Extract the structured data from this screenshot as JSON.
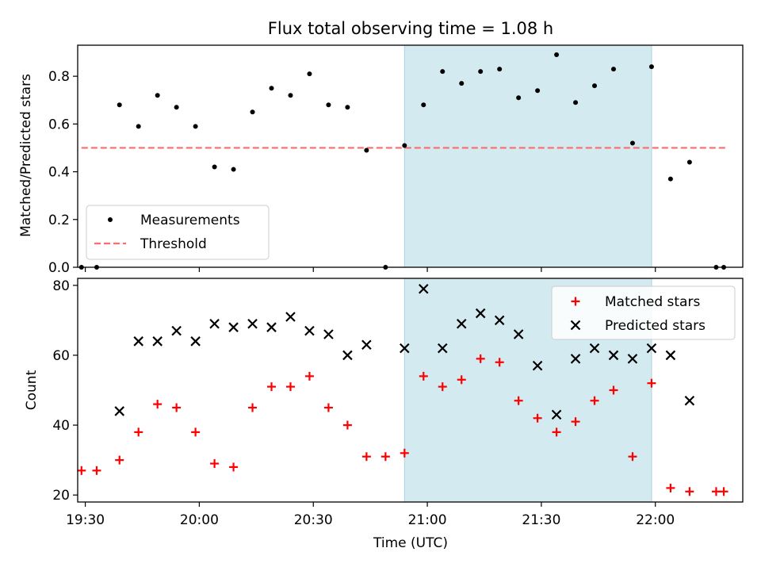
{
  "chart_data": [
    {
      "type": "scatter",
      "title": "Flux total observing time = 1.08 h",
      "xlabel": "",
      "ylabel": "Matched/Predicted stars",
      "ylim": [
        0,
        0.93
      ],
      "yticks": [
        "0.0",
        "0.2",
        "0.4",
        "0.6",
        "0.8"
      ],
      "ytick_values": [
        0,
        0.2,
        0.4,
        0.6,
        0.8
      ],
      "xlim": [
        "19:28",
        "22:23"
      ],
      "xticks": [
        "19:30",
        "20:00",
        "20:30",
        "21:00",
        "21:30",
        "22:00"
      ],
      "x_tick_labels_shown": false,
      "shaded_region": {
        "start": "20:54",
        "end": "21:59",
        "color": "#d3eaf0"
      },
      "threshold": {
        "value": 0.5,
        "start": "19:29",
        "end": "22:19",
        "color": "#ff6b6b"
      },
      "legend": {
        "placement": "lower-left",
        "entries": [
          "Measurements",
          "Threshold"
        ]
      },
      "series": [
        {
          "name": "Measurements",
          "marker": "dot",
          "color": "#000000",
          "points": [
            [
              "19:29",
              0.0
            ],
            [
              "19:33",
              0.0
            ],
            [
              "19:39",
              0.68
            ],
            [
              "19:44",
              0.59
            ],
            [
              "19:49",
              0.72
            ],
            [
              "19:54",
              0.67
            ],
            [
              "19:59",
              0.59
            ],
            [
              "20:04",
              0.42
            ],
            [
              "20:09",
              0.41
            ],
            [
              "20:14",
              0.65
            ],
            [
              "20:19",
              0.75
            ],
            [
              "20:24",
              0.72
            ],
            [
              "20:29",
              0.81
            ],
            [
              "20:34",
              0.68
            ],
            [
              "20:39",
              0.67
            ],
            [
              "20:44",
              0.49
            ],
            [
              "20:49",
              0.0
            ],
            [
              "20:54",
              0.51
            ],
            [
              "20:59",
              0.68
            ],
            [
              "21:04",
              0.82
            ],
            [
              "21:09",
              0.77
            ],
            [
              "21:14",
              0.82
            ],
            [
              "21:19",
              0.83
            ],
            [
              "21:24",
              0.71
            ],
            [
              "21:29",
              0.74
            ],
            [
              "21:34",
              0.89
            ],
            [
              "21:39",
              0.69
            ],
            [
              "21:44",
              0.76
            ],
            [
              "21:49",
              0.83
            ],
            [
              "21:54",
              0.52
            ],
            [
              "21:59",
              0.84
            ],
            [
              "22:04",
              0.37
            ],
            [
              "22:09",
              0.44
            ],
            [
              "22:16",
              0.0
            ],
            [
              "22:18",
              0.0
            ]
          ]
        }
      ]
    },
    {
      "type": "scatter",
      "title": "",
      "xlabel": "Time (UTC)",
      "ylabel": "Count",
      "ylim": [
        18,
        82
      ],
      "yticks": [
        "20",
        "40",
        "60",
        "80"
      ],
      "ytick_values": [
        20,
        40,
        60,
        80
      ],
      "xlim": [
        "19:28",
        "22:23"
      ],
      "xticks": [
        "19:30",
        "20:00",
        "20:30",
        "21:00",
        "21:30",
        "22:00"
      ],
      "x_tick_labels_shown": true,
      "shaded_region": {
        "start": "20:54",
        "end": "21:59",
        "color": "#d3eaf0"
      },
      "legend": {
        "placement": "top-right",
        "entries": [
          "Matched stars",
          "Predicted stars"
        ]
      },
      "series": [
        {
          "name": "Matched stars",
          "marker": "plus",
          "color": "#ff0000",
          "points": [
            [
              "19:29",
              27
            ],
            [
              "19:33",
              27
            ],
            [
              "19:39",
              30
            ],
            [
              "19:44",
              38
            ],
            [
              "19:49",
              46
            ],
            [
              "19:54",
              45
            ],
            [
              "19:59",
              38
            ],
            [
              "20:04",
              29
            ],
            [
              "20:09",
              28
            ],
            [
              "20:14",
              45
            ],
            [
              "20:19",
              51
            ],
            [
              "20:24",
              51
            ],
            [
              "20:29",
              54
            ],
            [
              "20:34",
              45
            ],
            [
              "20:39",
              40
            ],
            [
              "20:44",
              31
            ],
            [
              "20:49",
              31
            ],
            [
              "20:54",
              32
            ],
            [
              "20:59",
              54
            ],
            [
              "21:04",
              51
            ],
            [
              "21:09",
              53
            ],
            [
              "21:14",
              59
            ],
            [
              "21:19",
              58
            ],
            [
              "21:24",
              47
            ],
            [
              "21:29",
              42
            ],
            [
              "21:34",
              38
            ],
            [
              "21:39",
              41
            ],
            [
              "21:44",
              47
            ],
            [
              "21:49",
              50
            ],
            [
              "21:54",
              31
            ],
            [
              "21:59",
              52
            ],
            [
              "22:04",
              22
            ],
            [
              "22:09",
              21
            ],
            [
              "22:16",
              21
            ],
            [
              "22:18",
              21
            ]
          ]
        },
        {
          "name": "Predicted stars",
          "marker": "x",
          "color": "#000000",
          "points": [
            [
              "19:39",
              44
            ],
            [
              "19:44",
              64
            ],
            [
              "19:49",
              64
            ],
            [
              "19:54",
              67
            ],
            [
              "19:59",
              64
            ],
            [
              "20:04",
              69
            ],
            [
              "20:09",
              68
            ],
            [
              "20:14",
              69
            ],
            [
              "20:19",
              68
            ],
            [
              "20:24",
              71
            ],
            [
              "20:29",
              67
            ],
            [
              "20:34",
              66
            ],
            [
              "20:39",
              60
            ],
            [
              "20:44",
              63
            ],
            [
              "20:54",
              62
            ],
            [
              "20:59",
              79
            ],
            [
              "21:04",
              62
            ],
            [
              "21:09",
              69
            ],
            [
              "21:14",
              72
            ],
            [
              "21:19",
              70
            ],
            [
              "21:24",
              66
            ],
            [
              "21:29",
              57
            ],
            [
              "21:34",
              43
            ],
            [
              "21:39",
              59
            ],
            [
              "21:44",
              62
            ],
            [
              "21:49",
              60
            ],
            [
              "21:54",
              59
            ],
            [
              "21:59",
              62
            ],
            [
              "22:04",
              60
            ],
            [
              "22:09",
              47
            ]
          ]
        }
      ]
    }
  ]
}
